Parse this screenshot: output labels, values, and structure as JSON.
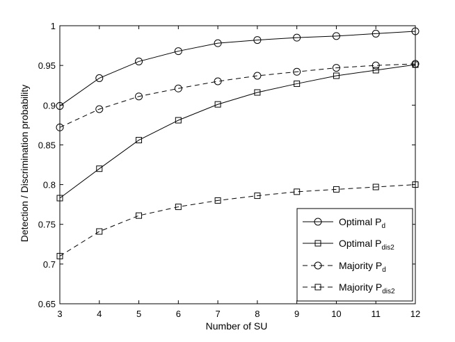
{
  "chart_data": {
    "type": "line",
    "title": "",
    "xlabel": "Number of SU",
    "ylabel": "Detection / Discrimination probability",
    "xlim": [
      3,
      12
    ],
    "ylim": [
      0.65,
      1
    ],
    "xticks": [
      3,
      4,
      5,
      6,
      7,
      8,
      9,
      10,
      11,
      12
    ],
    "yticks": [
      0.65,
      0.7,
      0.75,
      0.8,
      0.85,
      0.9,
      0.95,
      1
    ],
    "ytick_labels": [
      "0.65",
      "0.7",
      "0.75",
      "0.8",
      "0.85",
      "0.9",
      "0.95",
      "1"
    ],
    "grid": false,
    "legend_position": "bottom-right",
    "x": [
      3,
      4,
      5,
      6,
      7,
      8,
      9,
      10,
      11,
      12
    ],
    "series": [
      {
        "name": "Optimal P",
        "name_sub": "d",
        "line_style": "solid",
        "marker": "circle",
        "color": "#000000",
        "values": [
          0.899,
          0.934,
          0.955,
          0.968,
          0.978,
          0.982,
          0.985,
          0.987,
          0.99,
          0.993
        ]
      },
      {
        "name": "Optimal P",
        "name_sub": "dis2",
        "line_style": "solid",
        "marker": "square",
        "color": "#000000",
        "values": [
          0.783,
          0.82,
          0.856,
          0.881,
          0.901,
          0.916,
          0.927,
          0.937,
          0.944,
          0.951
        ]
      },
      {
        "name": "Majority P",
        "name_sub": "d",
        "line_style": "dashed",
        "marker": "circle",
        "color": "#000000",
        "values": [
          0.872,
          0.895,
          0.911,
          0.921,
          0.93,
          0.937,
          0.942,
          0.947,
          0.95,
          0.952
        ]
      },
      {
        "name": "Majority P",
        "name_sub": "dis2",
        "line_style": "dashed",
        "marker": "square",
        "color": "#000000",
        "values": [
          0.71,
          0.741,
          0.761,
          0.772,
          0.78,
          0.786,
          0.791,
          0.794,
          0.797,
          0.8
        ]
      }
    ]
  }
}
